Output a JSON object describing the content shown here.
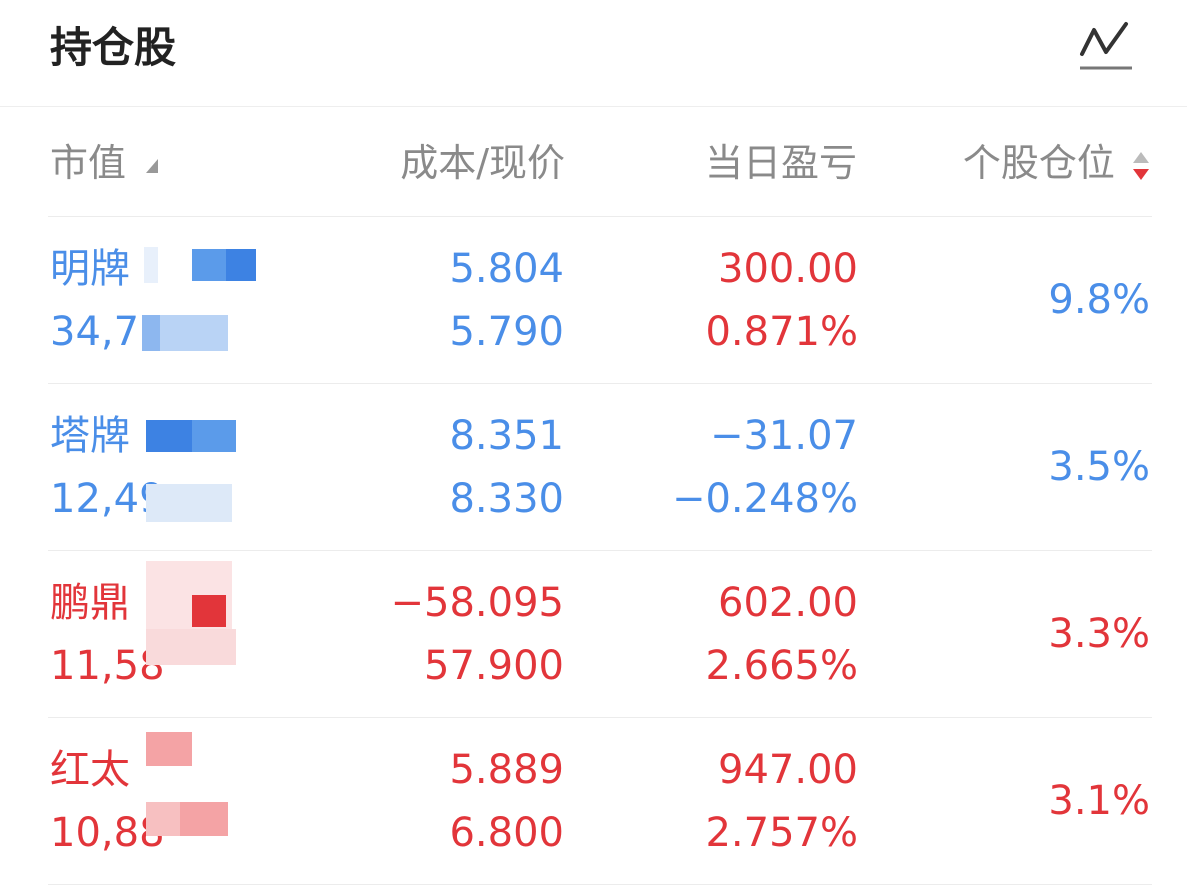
{
  "header": {
    "title": "持仓股",
    "chart_icon": "line-chart-icon"
  },
  "columns": {
    "market_value": "市值",
    "cost_price": "成本/现价",
    "daily_pnl": "当日盈亏",
    "position": "个股仓位"
  },
  "colors": {
    "up": "#e2353a",
    "down": "#4a8ee8",
    "muted": "#8a8a8a"
  },
  "rows": [
    {
      "name": "明牌",
      "market_value": "34,7",
      "cost": "5.804",
      "price": "5.790",
      "pnl": "300.00",
      "pnl_pct": "0.871%",
      "position": "9.8%"
    },
    {
      "name": "塔牌",
      "market_value": "12,49",
      "cost": "8.351",
      "price": "8.330",
      "pnl": "−31.07",
      "pnl_pct": "−0.248%",
      "position": "3.5%"
    },
    {
      "name": "鹏鼎",
      "market_value": "11,58",
      "cost": "−58.095",
      "price": "57.900",
      "pnl": "602.00",
      "pnl_pct": "2.665%",
      "position": "3.3%"
    },
    {
      "name": "红太",
      "market_value": "10,88",
      "cost": "5.889",
      "price": "6.800",
      "pnl": "947.00",
      "pnl_pct": "2.757%",
      "position": "3.1%"
    }
  ]
}
